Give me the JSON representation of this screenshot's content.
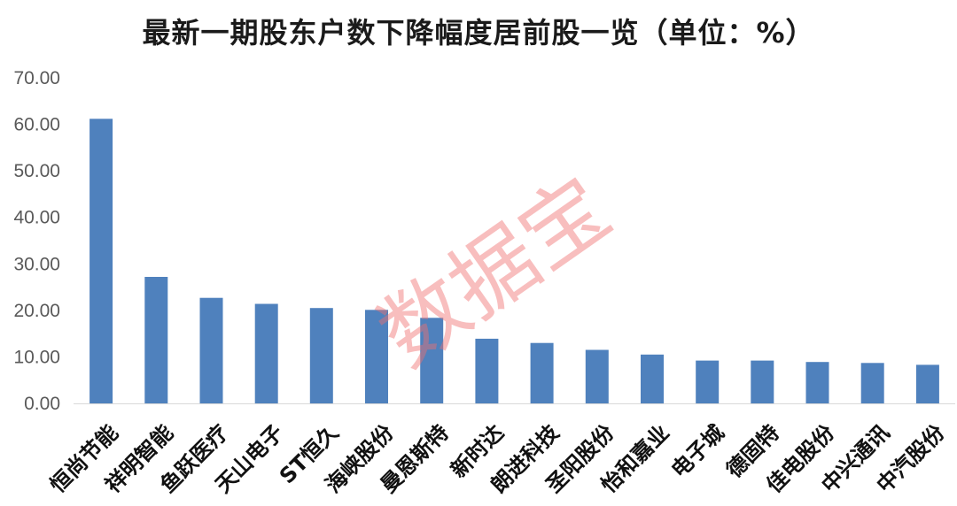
{
  "chart_data": {
    "type": "bar",
    "title": "最新一期股东户数下降幅度居前股一览（单位：%）",
    "xlabel": "",
    "ylabel": "",
    "ylim": [
      0,
      70
    ],
    "yticks": [
      "0.00",
      "10.00",
      "20.00",
      "30.00",
      "40.00",
      "50.00",
      "60.00",
      "70.00"
    ],
    "categories": [
      "恒尚节能",
      "祥明智能",
      "鱼跃医疗",
      "天山电子",
      "ST恒久",
      "海峡股份",
      "曼恩斯特",
      "新时达",
      "朗进科技",
      "圣阳股份",
      "怡和嘉业",
      "电子城",
      "德固特",
      "佳电股份",
      "中兴通讯",
      "中汽股份"
    ],
    "values": [
      61.2,
      27.2,
      22.7,
      21.4,
      20.5,
      20.1,
      18.4,
      13.9,
      13.0,
      11.5,
      10.5,
      9.2,
      9.2,
      8.9,
      8.7,
      8.3
    ],
    "bar_color": "#4f81bd",
    "grid": false,
    "legend": "none",
    "watermark": "数据宝"
  }
}
